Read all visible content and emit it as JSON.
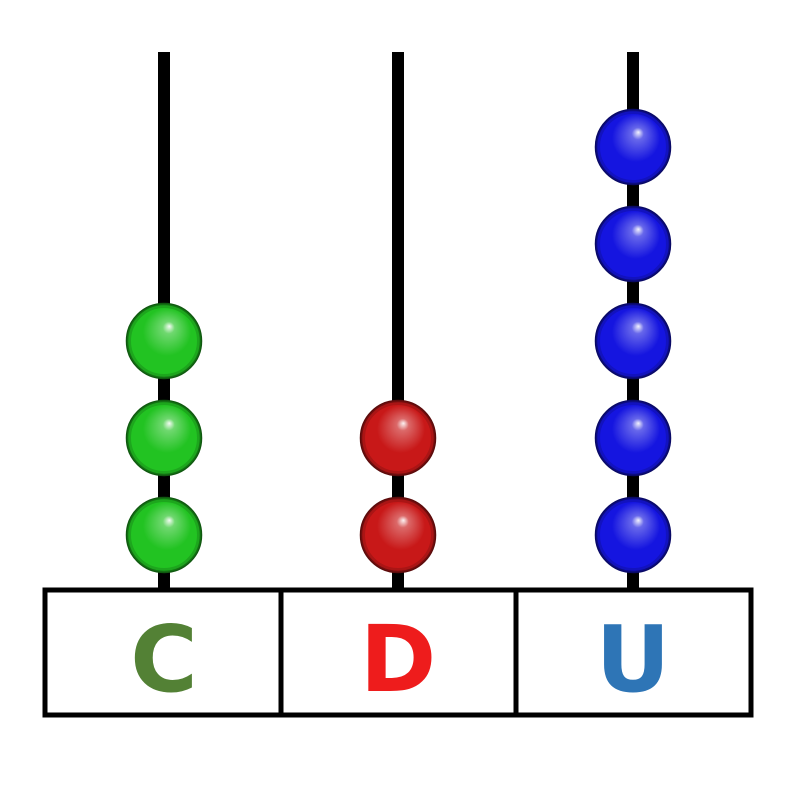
{
  "abacus": {
    "columns": [
      {
        "label": "C",
        "label_color": "#538135",
        "bead_color": "#22c322",
        "bead_count": 3
      },
      {
        "label": "D",
        "label_color": "#ee1c1c",
        "bead_color": "#c81818",
        "bead_count": 2
      },
      {
        "label": "U",
        "label_color": "#2e75b6",
        "bead_color": "#1515e0",
        "bead_count": 5
      }
    ]
  }
}
